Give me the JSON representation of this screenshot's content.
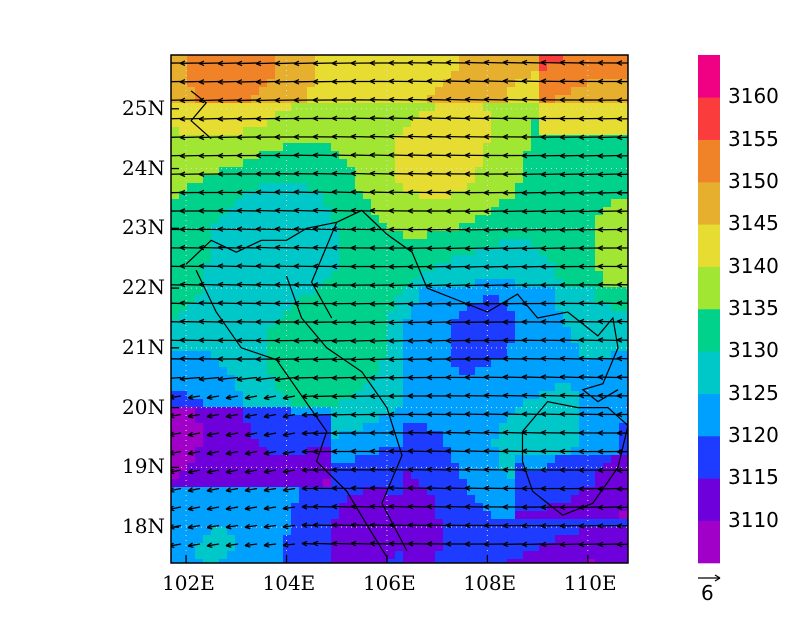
{
  "map": {
    "lon_range": [
      101.7,
      110.8
    ],
    "lat_range": [
      17.4,
      25.9
    ],
    "lon_ticks": [
      {
        "value": 102,
        "label": "102E"
      },
      {
        "value": 104,
        "label": "104E"
      },
      {
        "value": 106,
        "label": "106E"
      },
      {
        "value": 108,
        "label": "108E"
      },
      {
        "value": 110,
        "label": "110E"
      }
    ],
    "lat_ticks": [
      {
        "value": 18,
        "label": "18N"
      },
      {
        "value": 19,
        "label": "19N"
      },
      {
        "value": 20,
        "label": "20N"
      },
      {
        "value": 21,
        "label": "21N"
      },
      {
        "value": 22,
        "label": "22N"
      },
      {
        "value": 23,
        "label": "23N"
      },
      {
        "value": 24,
        "label": "24N"
      },
      {
        "value": 25,
        "label": "25N"
      }
    ],
    "gridlines": "dotted"
  },
  "colorbar": {
    "levels": [
      3110,
      3115,
      3120,
      3125,
      3130,
      3135,
      3140,
      3145,
      3150,
      3155,
      3160
    ],
    "colors": [
      "#a000c8",
      "#6e00dc",
      "#1e3cff",
      "#00a0ff",
      "#00c8c8",
      "#00d28c",
      "#a0e632",
      "#e6dc32",
      "#e6af2d",
      "#f08228",
      "#fa3c3c",
      "#f00082"
    ],
    "labels": [
      "3110",
      "3115",
      "3120",
      "3125",
      "3130",
      "3135",
      "3140",
      "3145",
      "3150",
      "3155",
      "3160"
    ]
  },
  "vector_reference": {
    "label": "6"
  }
}
